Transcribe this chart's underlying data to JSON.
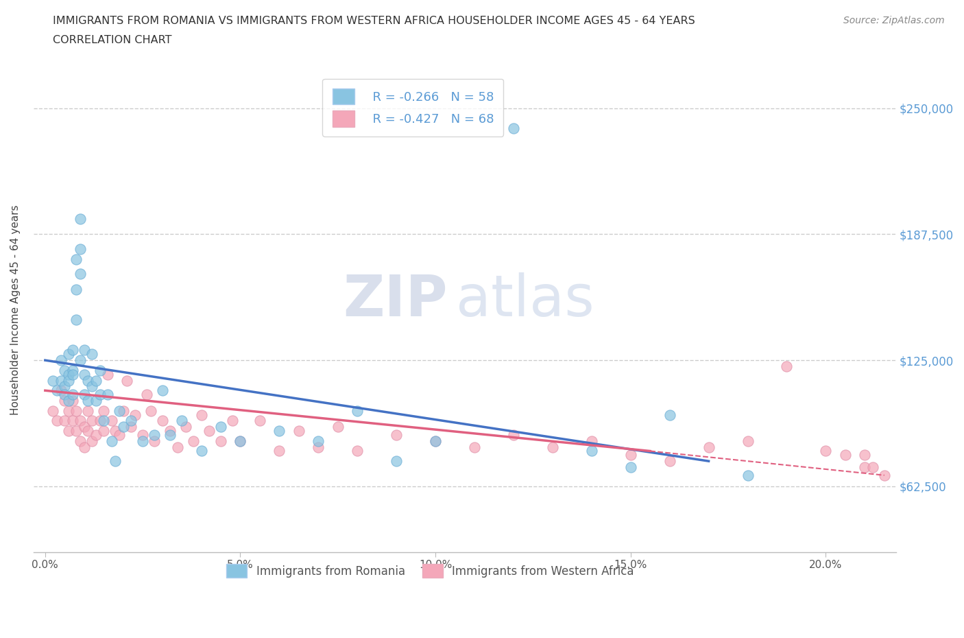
{
  "title_line1": "IMMIGRANTS FROM ROMANIA VS IMMIGRANTS FROM WESTERN AFRICA HOUSEHOLDER INCOME AGES 45 - 64 YEARS",
  "title_line2": "CORRELATION CHART",
  "source": "Source: ZipAtlas.com",
  "ylabel": "Householder Income Ages 45 - 64 years",
  "xlabel_ticks": [
    "0.0%",
    "5.0%",
    "10.0%",
    "15.0%",
    "20.0%"
  ],
  "xlabel_vals": [
    0.0,
    0.05,
    0.1,
    0.15,
    0.2
  ],
  "ytick_labels": [
    "$62,500",
    "$125,000",
    "$187,500",
    "$250,000"
  ],
  "ytick_vals": [
    62500,
    125000,
    187500,
    250000
  ],
  "xmin": -0.003,
  "xmax": 0.218,
  "ymin": 30000,
  "ymax": 270000,
  "romania_color": "#89c4e1",
  "western_africa_color": "#f4a7b9",
  "romania_line_color": "#4472c4",
  "western_africa_line_color": "#e06080",
  "romania_R": -0.266,
  "romania_N": 58,
  "western_africa_R": -0.427,
  "western_africa_N": 68,
  "watermark_zip": "ZIP",
  "watermark_atlas": "atlas",
  "romania_x": [
    0.002,
    0.003,
    0.004,
    0.004,
    0.005,
    0.005,
    0.005,
    0.006,
    0.006,
    0.006,
    0.006,
    0.007,
    0.007,
    0.007,
    0.007,
    0.008,
    0.008,
    0.008,
    0.009,
    0.009,
    0.009,
    0.009,
    0.01,
    0.01,
    0.01,
    0.011,
    0.011,
    0.012,
    0.012,
    0.013,
    0.013,
    0.014,
    0.014,
    0.015,
    0.016,
    0.017,
    0.018,
    0.019,
    0.02,
    0.022,
    0.025,
    0.028,
    0.03,
    0.032,
    0.035,
    0.04,
    0.045,
    0.05,
    0.06,
    0.07,
    0.08,
    0.09,
    0.1,
    0.12,
    0.14,
    0.15,
    0.16,
    0.18
  ],
  "romania_y": [
    115000,
    110000,
    125000,
    115000,
    120000,
    112000,
    108000,
    118000,
    105000,
    128000,
    115000,
    130000,
    120000,
    108000,
    118000,
    175000,
    160000,
    145000,
    195000,
    180000,
    168000,
    125000,
    118000,
    108000,
    130000,
    115000,
    105000,
    112000,
    128000,
    105000,
    115000,
    108000,
    120000,
    95000,
    108000,
    85000,
    75000,
    100000,
    92000,
    95000,
    85000,
    88000,
    110000,
    88000,
    95000,
    80000,
    92000,
    85000,
    90000,
    85000,
    100000,
    75000,
    85000,
    240000,
    80000,
    72000,
    98000,
    68000
  ],
  "western_africa_x": [
    0.002,
    0.003,
    0.004,
    0.005,
    0.005,
    0.006,
    0.006,
    0.007,
    0.007,
    0.008,
    0.008,
    0.009,
    0.009,
    0.01,
    0.01,
    0.011,
    0.011,
    0.012,
    0.012,
    0.013,
    0.014,
    0.015,
    0.015,
    0.016,
    0.017,
    0.018,
    0.019,
    0.02,
    0.021,
    0.022,
    0.023,
    0.025,
    0.026,
    0.027,
    0.028,
    0.03,
    0.032,
    0.034,
    0.036,
    0.038,
    0.04,
    0.042,
    0.045,
    0.048,
    0.05,
    0.055,
    0.06,
    0.065,
    0.07,
    0.075,
    0.08,
    0.09,
    0.1,
    0.11,
    0.12,
    0.13,
    0.14,
    0.15,
    0.16,
    0.17,
    0.18,
    0.19,
    0.2,
    0.205,
    0.21,
    0.21,
    0.212,
    0.215
  ],
  "western_africa_y": [
    100000,
    95000,
    110000,
    105000,
    95000,
    100000,
    90000,
    105000,
    95000,
    100000,
    90000,
    95000,
    85000,
    92000,
    82000,
    100000,
    90000,
    95000,
    85000,
    88000,
    95000,
    100000,
    90000,
    118000,
    95000,
    90000,
    88000,
    100000,
    115000,
    92000,
    98000,
    88000,
    108000,
    100000,
    85000,
    95000,
    90000,
    82000,
    92000,
    85000,
    98000,
    90000,
    85000,
    95000,
    85000,
    95000,
    80000,
    90000,
    82000,
    92000,
    80000,
    88000,
    85000,
    82000,
    88000,
    82000,
    85000,
    78000,
    75000,
    82000,
    85000,
    122000,
    80000,
    78000,
    72000,
    78000,
    72000,
    68000
  ]
}
